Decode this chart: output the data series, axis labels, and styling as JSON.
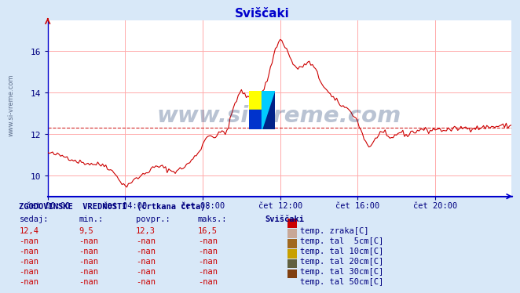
{
  "title": "Sviščaki",
  "title_color": "#0000cc",
  "bg_color": "#d8e8f8",
  "plot_bg_color": "#ffffff",
  "grid_color": "#ffaaaa",
  "axis_color": "#0000cc",
  "line_color": "#cc0000",
  "avg_line_value": 12.3,
  "ylim": [
    9.0,
    17.5
  ],
  "yticks": [
    10,
    12,
    14,
    16
  ],
  "xlabel_color": "#000080",
  "xtick_labels": [
    "čet 00:00",
    "čet 04:00",
    "čet 08:00",
    "čet 12:00",
    "čet 16:00",
    "čet 20:00"
  ],
  "xtick_positions": [
    0,
    48,
    96,
    144,
    192,
    240
  ],
  "total_points": 288,
  "watermark": "www.si-vreme.com",
  "watermark_color": "#1a3a6e",
  "watermark_alpha": 0.3,
  "stats_sedaj": "12,4",
  "stats_min": "9,5",
  "stats_povpr": "12,3",
  "stats_maks": "16,5",
  "legend_items": [
    {
      "label": "temp. zraka[C]",
      "color": "#cc0000"
    },
    {
      "label": "temp. tal  5cm[C]",
      "color": "#c8a898"
    },
    {
      "label": "temp. tal 10cm[C]",
      "color": "#a06820"
    },
    {
      "label": "temp. tal 20cm[C]",
      "color": "#c8a000"
    },
    {
      "label": "temp. tal 30cm[C]",
      "color": "#606040"
    },
    {
      "label": "temp. tal 50cm[C]",
      "color": "#804010"
    }
  ],
  "keypoints": [
    [
      0,
      11.1
    ],
    [
      6,
      11.0
    ],
    [
      12,
      10.9
    ],
    [
      18,
      10.7
    ],
    [
      24,
      10.6
    ],
    [
      30,
      10.55
    ],
    [
      36,
      10.5
    ],
    [
      40,
      10.2
    ],
    [
      44,
      9.9
    ],
    [
      46,
      9.6
    ],
    [
      48,
      9.5
    ],
    [
      50,
      9.6
    ],
    [
      54,
      9.8
    ],
    [
      58,
      10.0
    ],
    [
      62,
      10.2
    ],
    [
      66,
      10.4
    ],
    [
      70,
      10.45
    ],
    [
      74,
      10.3
    ],
    [
      78,
      10.2
    ],
    [
      82,
      10.3
    ],
    [
      86,
      10.5
    ],
    [
      90,
      10.8
    ],
    [
      94,
      11.2
    ],
    [
      98,
      11.8
    ],
    [
      100,
      12.0
    ],
    [
      102,
      11.9
    ],
    [
      104,
      11.85
    ],
    [
      106,
      12.0
    ],
    [
      108,
      12.15
    ],
    [
      110,
      12.1
    ],
    [
      112,
      12.3
    ],
    [
      114,
      13.0
    ],
    [
      116,
      13.5
    ],
    [
      118,
      13.8
    ],
    [
      120,
      14.1
    ],
    [
      122,
      13.9
    ],
    [
      124,
      13.8
    ],
    [
      126,
      13.5
    ],
    [
      128,
      13.4
    ],
    [
      130,
      13.6
    ],
    [
      132,
      13.9
    ],
    [
      134,
      14.2
    ],
    [
      136,
      14.6
    ],
    [
      138,
      15.2
    ],
    [
      140,
      15.8
    ],
    [
      142,
      16.3
    ],
    [
      144,
      16.55
    ],
    [
      146,
      16.4
    ],
    [
      148,
      16.1
    ],
    [
      150,
      15.7
    ],
    [
      152,
      15.4
    ],
    [
      154,
      15.2
    ],
    [
      156,
      15.15
    ],
    [
      158,
      15.3
    ],
    [
      160,
      15.4
    ],
    [
      162,
      15.45
    ],
    [
      164,
      15.3
    ],
    [
      166,
      15.1
    ],
    [
      168,
      14.7
    ],
    [
      172,
      14.2
    ],
    [
      176,
      13.8
    ],
    [
      180,
      13.5
    ],
    [
      184,
      13.3
    ],
    [
      188,
      13.1
    ],
    [
      192,
      12.6
    ],
    [
      196,
      11.8
    ],
    [
      198,
      11.5
    ],
    [
      200,
      11.4
    ],
    [
      202,
      11.6
    ],
    [
      204,
      11.9
    ],
    [
      206,
      12.1
    ],
    [
      208,
      12.05
    ],
    [
      210,
      11.9
    ],
    [
      212,
      11.75
    ],
    [
      214,
      11.85
    ],
    [
      216,
      12.0
    ],
    [
      218,
      12.1
    ],
    [
      220,
      12.05
    ],
    [
      222,
      11.95
    ],
    [
      224,
      12.0
    ],
    [
      226,
      12.15
    ],
    [
      228,
      12.1
    ],
    [
      230,
      12.2
    ],
    [
      232,
      12.25
    ],
    [
      234,
      12.2
    ],
    [
      236,
      12.15
    ],
    [
      238,
      12.2
    ],
    [
      240,
      12.25
    ],
    [
      244,
      12.2
    ],
    [
      248,
      12.2
    ],
    [
      252,
      12.25
    ],
    [
      256,
      12.3
    ],
    [
      260,
      12.3
    ],
    [
      264,
      12.3
    ],
    [
      268,
      12.3
    ],
    [
      272,
      12.35
    ],
    [
      276,
      12.35
    ],
    [
      280,
      12.4
    ],
    [
      284,
      12.4
    ],
    [
      287,
      12.4
    ]
  ],
  "noise_seed": 42,
  "noise_std": 0.06
}
